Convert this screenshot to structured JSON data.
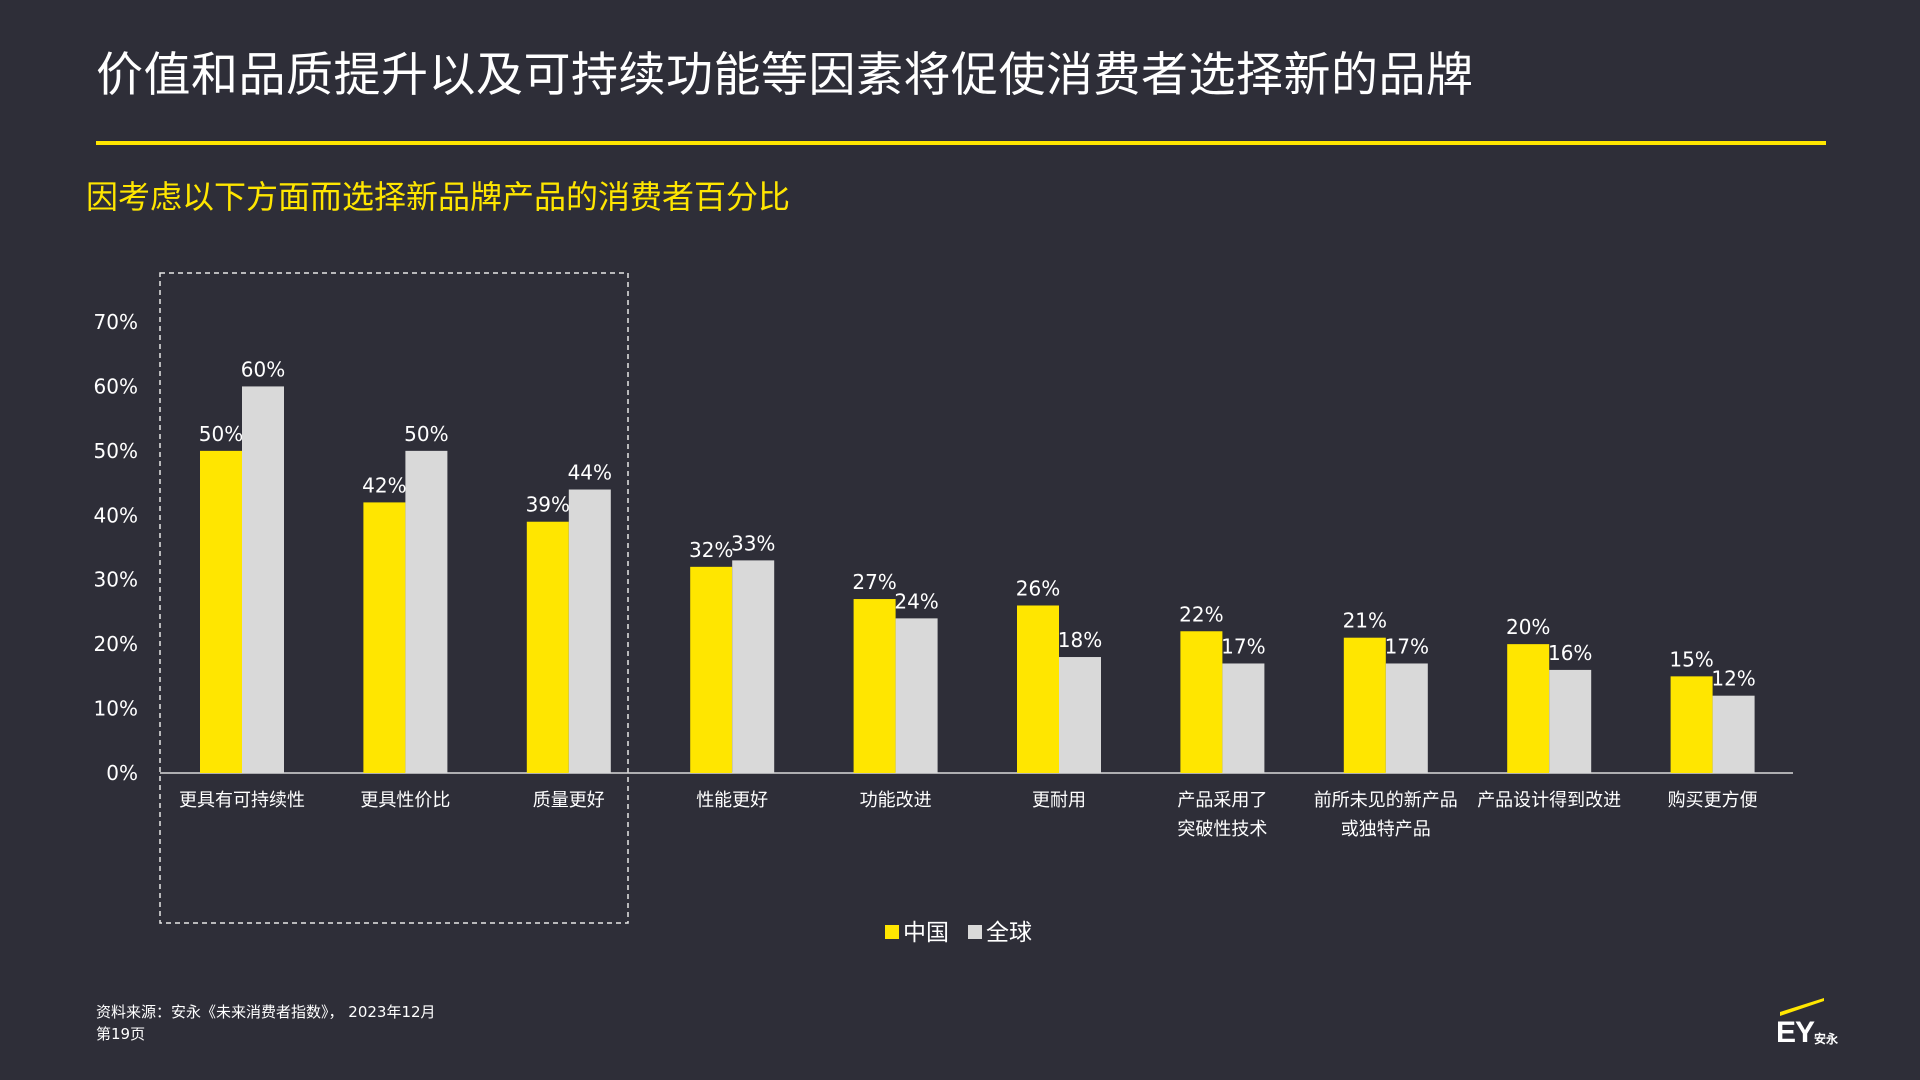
{
  "slide": {
    "title": "价值和品质提升以及可持续功能等因素将促使消费者选择新的品牌",
    "subtitle": "因考虑以下方面而选择新品牌产品的消费者百分比",
    "source": "资料来源：安永《未来消费者指数》， 2023年12月",
    "page": "第19页"
  },
  "logo": {
    "brand": "EY",
    "brand_cn": "安永",
    "accent_color": "#ffe600"
  },
  "colors": {
    "background": "#2e2e38",
    "china": "#ffe600",
    "global": "#d9d9d9",
    "text": "#ffffff"
  },
  "chart_data": {
    "type": "bar",
    "title": "因考虑以下方面而选择新品牌产品的消费者百分比",
    "categories": [
      [
        "更具有可持续性"
      ],
      [
        "更具性价比"
      ],
      [
        "质量更好"
      ],
      [
        "性能更好"
      ],
      [
        "功能改进"
      ],
      [
        "更耐用"
      ],
      [
        "产品采用了",
        "突破性技术"
      ],
      [
        "前所未见的新产品",
        "或独特产品"
      ],
      [
        "产品设计得到改进"
      ],
      [
        "购买更方便"
      ]
    ],
    "series": [
      {
        "name": "中国",
        "color": "#ffe600",
        "values": [
          50,
          42,
          39,
          32,
          27,
          26,
          22,
          21,
          20,
          15
        ]
      },
      {
        "name": "全球",
        "color": "#d9d9d9",
        "values": [
          60,
          50,
          44,
          33,
          24,
          18,
          17,
          17,
          16,
          12
        ]
      }
    ],
    "value_suffix": "%",
    "y_ticks": [
      "0%",
      "10%",
      "20%",
      "30%",
      "40%",
      "50%",
      "60%",
      "70%"
    ],
    "ylim": [
      0,
      70
    ],
    "grid": false,
    "legend_position": "bottom-center",
    "highlight": "dashed box around the first three categories"
  }
}
